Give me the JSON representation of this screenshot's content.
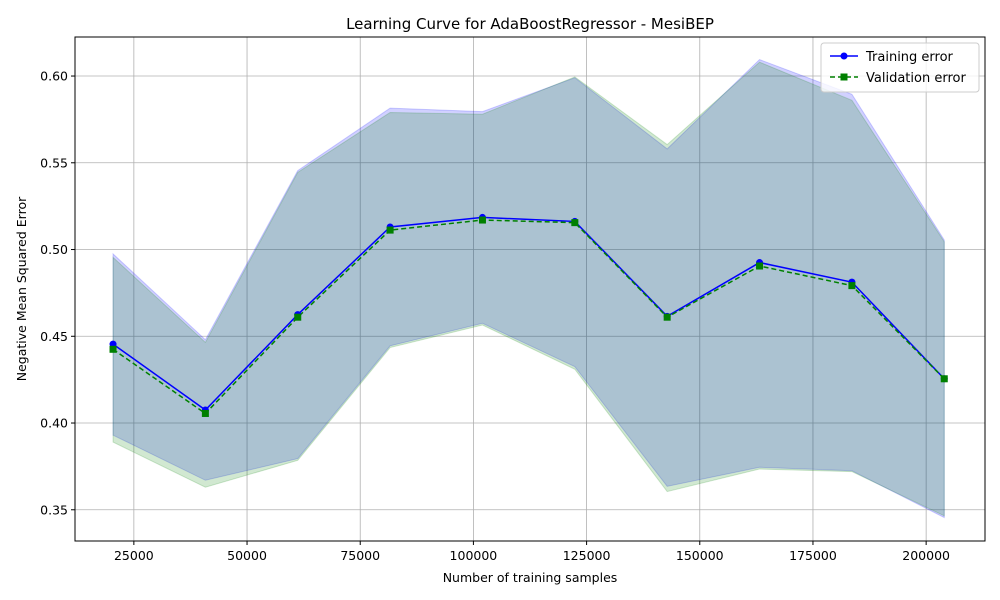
{
  "chart_data": {
    "type": "line",
    "title": "Learning Curve for AdaBoostRegressor - MesiBEP",
    "xlabel": "Number of training samples",
    "ylabel": "Negative Mean Squared Error",
    "xlim": [
      12000,
      213000
    ],
    "ylim": [
      0.332,
      0.6225
    ],
    "x_ticks": [
      25000,
      50000,
      75000,
      100000,
      125000,
      150000,
      175000,
      200000
    ],
    "y_ticks": [
      0.35,
      0.4,
      0.45,
      0.5,
      0.55,
      0.6
    ],
    "y_tick_labels": [
      "0.35",
      "0.40",
      "0.45",
      "0.50",
      "0.55",
      "0.60"
    ],
    "grid": true,
    "legend_position": "top-right",
    "x": [
      20400,
      40800,
      61200,
      81600,
      102000,
      122400,
      142800,
      163200,
      183600,
      204000
    ],
    "series": [
      {
        "name": "Training error",
        "values": [
          0.4455,
          0.4075,
          0.4625,
          0.513,
          0.5185,
          0.5162,
          0.4615,
          0.4925,
          0.4812,
          0.4255
        ],
        "upper": [
          0.4975,
          0.448,
          0.5455,
          0.5815,
          0.5795,
          0.599,
          0.558,
          0.6095,
          0.5895,
          0.5055
        ],
        "lower": [
          0.393,
          0.367,
          0.3795,
          0.4445,
          0.4575,
          0.4325,
          0.3635,
          0.3745,
          0.3725,
          0.3455
        ],
        "color": "#0000ff",
        "band_color": "#0000ff",
        "marker": "circle",
        "linestyle": "solid"
      },
      {
        "name": "Validation error",
        "values": [
          0.4425,
          0.4055,
          0.461,
          0.5112,
          0.517,
          0.5155,
          0.461,
          0.4905,
          0.4792,
          0.4255
        ],
        "upper": [
          0.4955,
          0.4465,
          0.5445,
          0.579,
          0.578,
          0.5995,
          0.5605,
          0.608,
          0.586,
          0.5045
        ],
        "lower": [
          0.389,
          0.363,
          0.3785,
          0.4435,
          0.4565,
          0.431,
          0.3605,
          0.3735,
          0.372,
          0.3465
        ],
        "color": "#008000",
        "band_color": "#008000",
        "marker": "square",
        "linestyle": "dashed"
      }
    ]
  }
}
